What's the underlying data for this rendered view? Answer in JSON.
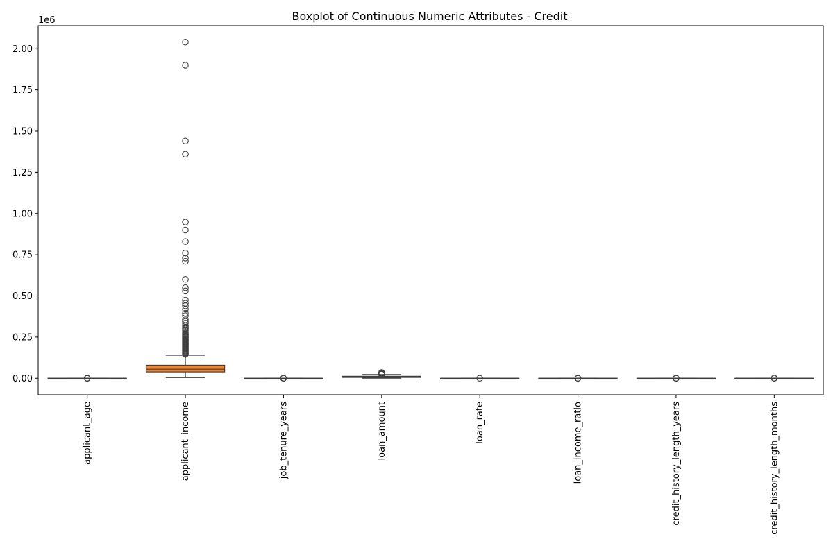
{
  "chart_data": {
    "type": "boxplot",
    "title": "Boxplot of Continuous Numeric Attributes - Credit",
    "y_offset_label": "1e6",
    "ylim": [
      -100000,
      2140000
    ],
    "yticks": [
      0,
      250000,
      500000,
      750000,
      1000000,
      1250000,
      1500000,
      1750000,
      2000000
    ],
    "ytick_labels": [
      "0.00",
      "0.25",
      "0.50",
      "0.75",
      "1.00",
      "1.25",
      "1.50",
      "1.75",
      "2.00"
    ],
    "categories": [
      "applicant_age",
      "applicant_income",
      "job_tenure_years",
      "loan_amount",
      "loan_rate",
      "loan_income_ratio",
      "credit_history_length_years",
      "credit_history_length_months"
    ],
    "boxes": [
      {
        "name": "applicant_age",
        "color": "#3a75af",
        "whislo": 20,
        "q1": 23,
        "med": 26,
        "q3": 30,
        "whishi": 40,
        "outliers": [
          50,
          80,
          120,
          144
        ]
      },
      {
        "name": "applicant_income",
        "color": "#ef8636",
        "whislo": 4000,
        "q1": 38500,
        "med": 55000,
        "q3": 79200,
        "whishi": 140000,
        "outliers": [
          145000,
          150000,
          155000,
          160000,
          165000,
          170000,
          175000,
          180000,
          185000,
          190000,
          195000,
          200000,
          205000,
          210000,
          215000,
          220000,
          225000,
          230000,
          235000,
          240000,
          245000,
          250000,
          255000,
          260000,
          265000,
          270000,
          280000,
          290000,
          300000,
          305000,
          310000,
          320000,
          335000,
          345000,
          355000,
          380000,
          395000,
          420000,
          440000,
          455000,
          475000,
          530000,
          550000,
          600000,
          710000,
          730000,
          760000,
          830000,
          900000,
          948000,
          1360000,
          1440000,
          1900000,
          2040000
        ]
      },
      {
        "name": "job_tenure_years",
        "color": "#519e3e",
        "whislo": 0,
        "q1": 2,
        "med": 4,
        "q3": 7,
        "whishi": 14,
        "outliers": [
          20,
          40,
          80,
          123
        ]
      },
      {
        "name": "loan_amount",
        "color": "#c53a32",
        "whislo": 500,
        "q1": 5000,
        "med": 8000,
        "q3": 12200,
        "whishi": 23000,
        "outliers": [
          24000,
          26000,
          28000,
          30000,
          32000,
          34000,
          35000
        ]
      },
      {
        "name": "loan_rate",
        "color": "#8d69b8",
        "whislo": 5.4,
        "q1": 7.9,
        "med": 11.0,
        "q3": 13.5,
        "whishi": 22,
        "outliers": [
          23.2
        ]
      },
      {
        "name": "loan_income_ratio",
        "color": "#84584e",
        "whislo": 0,
        "q1": 0.09,
        "med": 0.15,
        "q3": 0.23,
        "whishi": 0.44,
        "outliers": [
          0.5,
          0.6,
          0.8
        ]
      },
      {
        "name": "credit_history_length_years",
        "color": "#d57dbe",
        "whislo": 2,
        "q1": 3,
        "med": 4,
        "q3": 8,
        "whishi": 15,
        "outliers": [
          16,
          20,
          25,
          30
        ]
      },
      {
        "name": "credit_history_length_months",
        "color": "#7f7f7f",
        "whislo": 24,
        "q1": 36,
        "med": 48,
        "q3": 96,
        "whishi": 180,
        "outliers": [
          200,
          240,
          300,
          360
        ]
      }
    ]
  }
}
